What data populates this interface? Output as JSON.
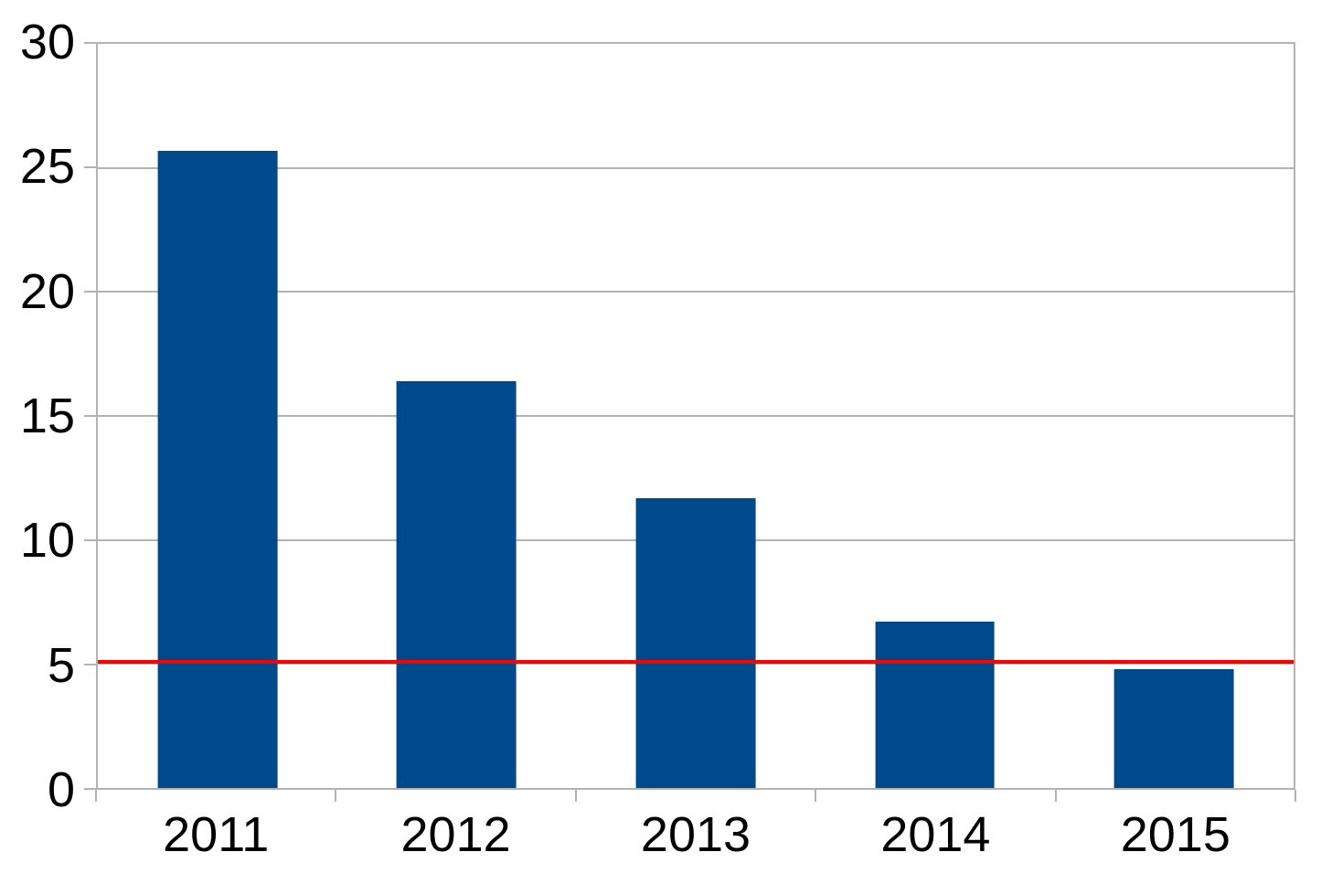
{
  "chart_data": {
    "type": "bar",
    "title": "",
    "xlabel": "",
    "ylabel": "",
    "categories": [
      "2011",
      "2012",
      "2013",
      "2014",
      "2015"
    ],
    "series": [
      {
        "name": "",
        "values": [
          25.7,
          16.4,
          11.7,
          6.7,
          4.8
        ]
      }
    ],
    "ylim": [
      0,
      30
    ],
    "yticks": [
      0,
      5,
      10,
      15,
      20,
      25,
      30
    ],
    "grid": true,
    "legend": false,
    "bar_width_fraction": 0.5,
    "reference_line": {
      "value": 5.1,
      "color": "#ff0000"
    },
    "colors": {
      "bar": "#004A8C",
      "axis": "#b3b3b3",
      "grid": "#b3b3b3",
      "label": "#000000",
      "background": "#ffffff"
    }
  }
}
